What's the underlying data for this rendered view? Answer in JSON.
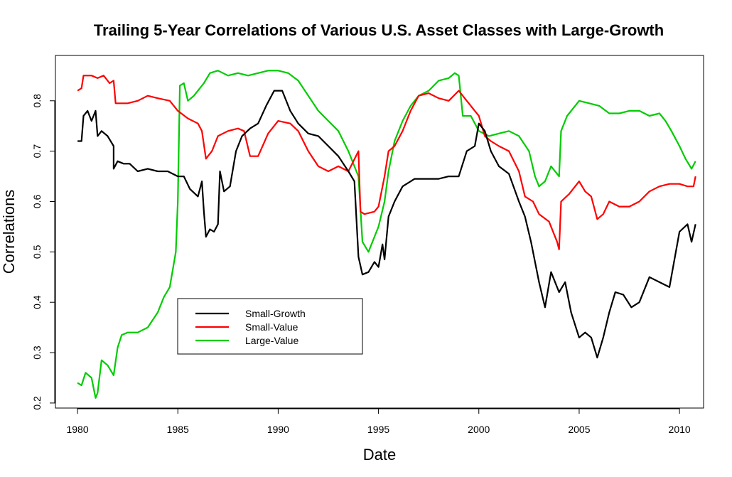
{
  "chart_data": {
    "type": "line",
    "title": "Trailing 5-Year Correlations of Various U.S. Asset Classes with Large-Growth",
    "xlabel": "Date",
    "ylabel": "Correlations",
    "xlim": [
      1978.9,
      2011.2
    ],
    "ylim": [
      0.19,
      0.89
    ],
    "x_ticks": [
      1980,
      1985,
      1990,
      1995,
      2000,
      2005,
      2010
    ],
    "y_ticks": [
      0.2,
      0.3,
      0.4,
      0.5,
      0.6,
      0.7,
      0.8
    ],
    "legend_position": "lower-left",
    "series": [
      {
        "name": "Small-Growth",
        "color": "#000000",
        "points": [
          [
            1980.0,
            0.72
          ],
          [
            1980.2,
            0.72
          ],
          [
            1980.3,
            0.77
          ],
          [
            1980.5,
            0.78
          ],
          [
            1980.7,
            0.76
          ],
          [
            1980.9,
            0.78
          ],
          [
            1981.0,
            0.73
          ],
          [
            1981.2,
            0.74
          ],
          [
            1981.5,
            0.73
          ],
          [
            1981.8,
            0.71
          ],
          [
            1981.8,
            0.665
          ],
          [
            1982.0,
            0.68
          ],
          [
            1982.3,
            0.675
          ],
          [
            1982.6,
            0.675
          ],
          [
            1983.0,
            0.66
          ],
          [
            1983.5,
            0.665
          ],
          [
            1984.0,
            0.66
          ],
          [
            1984.5,
            0.66
          ],
          [
            1985.0,
            0.65
          ],
          [
            1985.3,
            0.65
          ],
          [
            1985.6,
            0.625
          ],
          [
            1986.0,
            0.61
          ],
          [
            1986.2,
            0.64
          ],
          [
            1986.3,
            0.58
          ],
          [
            1986.4,
            0.53
          ],
          [
            1986.6,
            0.545
          ],
          [
            1986.8,
            0.54
          ],
          [
            1987.0,
            0.555
          ],
          [
            1987.1,
            0.66
          ],
          [
            1987.3,
            0.62
          ],
          [
            1987.6,
            0.63
          ],
          [
            1987.9,
            0.7
          ],
          [
            1988.2,
            0.73
          ],
          [
            1988.6,
            0.745
          ],
          [
            1989.0,
            0.755
          ],
          [
            1989.4,
            0.79
          ],
          [
            1989.8,
            0.82
          ],
          [
            1990.2,
            0.82
          ],
          [
            1990.6,
            0.78
          ],
          [
            1991.0,
            0.755
          ],
          [
            1991.5,
            0.735
          ],
          [
            1992.0,
            0.73
          ],
          [
            1992.5,
            0.71
          ],
          [
            1993.0,
            0.69
          ],
          [
            1993.5,
            0.66
          ],
          [
            1993.8,
            0.64
          ],
          [
            1994.0,
            0.49
          ],
          [
            1994.2,
            0.455
          ],
          [
            1994.5,
            0.46
          ],
          [
            1994.8,
            0.48
          ],
          [
            1995.0,
            0.47
          ],
          [
            1995.2,
            0.515
          ],
          [
            1995.3,
            0.485
          ],
          [
            1995.5,
            0.57
          ],
          [
            1995.8,
            0.6
          ],
          [
            1996.2,
            0.63
          ],
          [
            1996.8,
            0.645
          ],
          [
            1997.5,
            0.645
          ],
          [
            1998.0,
            0.645
          ],
          [
            1998.5,
            0.65
          ],
          [
            1999.0,
            0.65
          ],
          [
            1999.4,
            0.7
          ],
          [
            1999.8,
            0.71
          ],
          [
            2000.0,
            0.755
          ],
          [
            2000.3,
            0.74
          ],
          [
            2000.6,
            0.7
          ],
          [
            2001.0,
            0.67
          ],
          [
            2001.5,
            0.655
          ],
          [
            2002.0,
            0.6
          ],
          [
            2002.3,
            0.57
          ],
          [
            2002.6,
            0.52
          ],
          [
            2003.0,
            0.44
          ],
          [
            2003.3,
            0.39
          ],
          [
            2003.6,
            0.46
          ],
          [
            2004.0,
            0.42
          ],
          [
            2004.3,
            0.44
          ],
          [
            2004.6,
            0.38
          ],
          [
            2005.0,
            0.33
          ],
          [
            2005.3,
            0.34
          ],
          [
            2005.6,
            0.33
          ],
          [
            2005.9,
            0.29
          ],
          [
            2006.2,
            0.33
          ],
          [
            2006.5,
            0.38
          ],
          [
            2006.8,
            0.42
          ],
          [
            2007.2,
            0.415
          ],
          [
            2007.6,
            0.39
          ],
          [
            2008.0,
            0.4
          ],
          [
            2008.5,
            0.45
          ],
          [
            2009.0,
            0.44
          ],
          [
            2009.5,
            0.43
          ],
          [
            2010.0,
            0.54
          ],
          [
            2010.4,
            0.555
          ],
          [
            2010.6,
            0.52
          ],
          [
            2010.8,
            0.555
          ]
        ]
      },
      {
        "name": "Small-Value",
        "color": "#ff0000",
        "points": [
          [
            1980.0,
            0.82
          ],
          [
            1980.2,
            0.825
          ],
          [
            1980.3,
            0.85
          ],
          [
            1980.7,
            0.85
          ],
          [
            1981.0,
            0.845
          ],
          [
            1981.3,
            0.85
          ],
          [
            1981.6,
            0.835
          ],
          [
            1981.8,
            0.84
          ],
          [
            1981.9,
            0.795
          ],
          [
            1982.5,
            0.795
          ],
          [
            1983.0,
            0.8
          ],
          [
            1983.5,
            0.81
          ],
          [
            1984.0,
            0.805
          ],
          [
            1984.6,
            0.8
          ],
          [
            1985.0,
            0.78
          ],
          [
            1985.5,
            0.765
          ],
          [
            1986.0,
            0.755
          ],
          [
            1986.2,
            0.74
          ],
          [
            1986.4,
            0.685
          ],
          [
            1986.7,
            0.7
          ],
          [
            1987.0,
            0.73
          ],
          [
            1987.5,
            0.74
          ],
          [
            1988.0,
            0.745
          ],
          [
            1988.3,
            0.74
          ],
          [
            1988.6,
            0.69
          ],
          [
            1989.0,
            0.69
          ],
          [
            1989.5,
            0.735
          ],
          [
            1990.0,
            0.76
          ],
          [
            1990.6,
            0.755
          ],
          [
            1991.0,
            0.74
          ],
          [
            1991.5,
            0.7
          ],
          [
            1992.0,
            0.67
          ],
          [
            1992.5,
            0.66
          ],
          [
            1993.0,
            0.67
          ],
          [
            1993.5,
            0.66
          ],
          [
            1994.0,
            0.7
          ],
          [
            1994.1,
            0.58
          ],
          [
            1994.3,
            0.575
          ],
          [
            1994.8,
            0.58
          ],
          [
            1995.0,
            0.59
          ],
          [
            1995.3,
            0.65
          ],
          [
            1995.5,
            0.7
          ],
          [
            1995.8,
            0.71
          ],
          [
            1996.2,
            0.74
          ],
          [
            1996.6,
            0.78
          ],
          [
            1997.0,
            0.81
          ],
          [
            1997.5,
            0.815
          ],
          [
            1998.0,
            0.805
          ],
          [
            1998.5,
            0.8
          ],
          [
            1999.0,
            0.82
          ],
          [
            1999.4,
            0.8
          ],
          [
            1999.8,
            0.78
          ],
          [
            2000.0,
            0.77
          ],
          [
            2000.3,
            0.73
          ],
          [
            2000.6,
            0.72
          ],
          [
            2001.0,
            0.71
          ],
          [
            2001.5,
            0.7
          ],
          [
            2002.0,
            0.66
          ],
          [
            2002.3,
            0.61
          ],
          [
            2002.7,
            0.6
          ],
          [
            2003.0,
            0.575
          ],
          [
            2003.5,
            0.56
          ],
          [
            2003.9,
            0.52
          ],
          [
            2004.0,
            0.505
          ],
          [
            2004.1,
            0.6
          ],
          [
            2004.5,
            0.615
          ],
          [
            2004.8,
            0.63
          ],
          [
            2005.0,
            0.64
          ],
          [
            2005.3,
            0.62
          ],
          [
            2005.6,
            0.61
          ],
          [
            2005.9,
            0.565
          ],
          [
            2006.2,
            0.575
          ],
          [
            2006.5,
            0.6
          ],
          [
            2007.0,
            0.59
          ],
          [
            2007.5,
            0.59
          ],
          [
            2008.0,
            0.6
          ],
          [
            2008.5,
            0.62
          ],
          [
            2009.0,
            0.63
          ],
          [
            2009.5,
            0.635
          ],
          [
            2010.0,
            0.635
          ],
          [
            2010.4,
            0.63
          ],
          [
            2010.7,
            0.63
          ],
          [
            2010.8,
            0.65
          ]
        ]
      },
      {
        "name": "Large-Value",
        "color": "#00cc00",
        "points": [
          [
            1980.0,
            0.24
          ],
          [
            1980.2,
            0.235
          ],
          [
            1980.4,
            0.26
          ],
          [
            1980.7,
            0.25
          ],
          [
            1980.9,
            0.21
          ],
          [
            1981.0,
            0.22
          ],
          [
            1981.2,
            0.285
          ],
          [
            1981.5,
            0.275
          ],
          [
            1981.8,
            0.255
          ],
          [
            1982.0,
            0.31
          ],
          [
            1982.2,
            0.335
          ],
          [
            1982.5,
            0.34
          ],
          [
            1983.0,
            0.34
          ],
          [
            1983.5,
            0.35
          ],
          [
            1984.0,
            0.38
          ],
          [
            1984.3,
            0.41
          ],
          [
            1984.6,
            0.43
          ],
          [
            1984.9,
            0.5
          ],
          [
            1985.0,
            0.6
          ],
          [
            1985.1,
            0.83
          ],
          [
            1985.3,
            0.835
          ],
          [
            1985.5,
            0.8
          ],
          [
            1985.8,
            0.81
          ],
          [
            1986.0,
            0.82
          ],
          [
            1986.3,
            0.835
          ],
          [
            1986.6,
            0.855
          ],
          [
            1987.0,
            0.86
          ],
          [
            1987.5,
            0.85
          ],
          [
            1988.0,
            0.855
          ],
          [
            1988.5,
            0.85
          ],
          [
            1989.0,
            0.855
          ],
          [
            1989.5,
            0.86
          ],
          [
            1990.0,
            0.86
          ],
          [
            1990.5,
            0.855
          ],
          [
            1991.0,
            0.84
          ],
          [
            1991.5,
            0.81
          ],
          [
            1992.0,
            0.78
          ],
          [
            1992.5,
            0.76
          ],
          [
            1993.0,
            0.74
          ],
          [
            1993.5,
            0.7
          ],
          [
            1994.0,
            0.65
          ],
          [
            1994.2,
            0.52
          ],
          [
            1994.5,
            0.5
          ],
          [
            1994.8,
            0.53
          ],
          [
            1995.0,
            0.55
          ],
          [
            1995.3,
            0.6
          ],
          [
            1995.5,
            0.66
          ],
          [
            1995.8,
            0.72
          ],
          [
            1996.2,
            0.76
          ],
          [
            1996.6,
            0.79
          ],
          [
            1997.0,
            0.81
          ],
          [
            1997.5,
            0.82
          ],
          [
            1998.0,
            0.84
          ],
          [
            1998.5,
            0.845
          ],
          [
            1998.8,
            0.855
          ],
          [
            1999.0,
            0.85
          ],
          [
            1999.2,
            0.77
          ],
          [
            1999.6,
            0.77
          ],
          [
            2000.0,
            0.74
          ],
          [
            2000.5,
            0.73
          ],
          [
            2001.0,
            0.735
          ],
          [
            2001.5,
            0.74
          ],
          [
            2002.0,
            0.73
          ],
          [
            2002.5,
            0.7
          ],
          [
            2002.8,
            0.65
          ],
          [
            2003.0,
            0.63
          ],
          [
            2003.3,
            0.64
          ],
          [
            2003.6,
            0.67
          ],
          [
            2004.0,
            0.65
          ],
          [
            2004.1,
            0.74
          ],
          [
            2004.4,
            0.77
          ],
          [
            2004.8,
            0.79
          ],
          [
            2005.0,
            0.8
          ],
          [
            2005.5,
            0.795
          ],
          [
            2006.0,
            0.79
          ],
          [
            2006.5,
            0.775
          ],
          [
            2007.0,
            0.775
          ],
          [
            2007.5,
            0.78
          ],
          [
            2008.0,
            0.78
          ],
          [
            2008.5,
            0.77
          ],
          [
            2009.0,
            0.775
          ],
          [
            2009.3,
            0.76
          ],
          [
            2009.6,
            0.74
          ],
          [
            2010.0,
            0.71
          ],
          [
            2010.3,
            0.685
          ],
          [
            2010.6,
            0.665
          ],
          [
            2010.8,
            0.68
          ]
        ]
      }
    ]
  }
}
